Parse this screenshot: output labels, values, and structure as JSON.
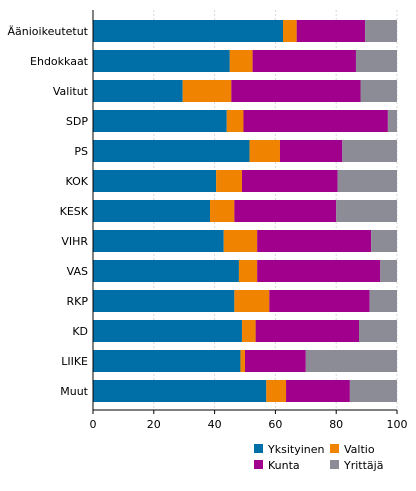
{
  "chart_data": {
    "type": "bar",
    "orientation": "horizontal",
    "stacked": true,
    "percent": true,
    "categories": [
      "Äänioikeutetut",
      "Ehdokkaat",
      "Valitut",
      "SDP",
      "PS",
      "KOK",
      "KESK",
      "VIHR",
      "VAS",
      "RKP",
      "KD",
      "LIIKE",
      "Muut"
    ],
    "series": [
      {
        "name": "Yksityinen",
        "color": "#006fa8",
        "values": [
          62.5,
          45,
          29.5,
          44,
          51.5,
          40.5,
          38.5,
          43,
          48,
          46.5,
          49,
          48.5,
          57
        ]
      },
      {
        "name": "Valtio",
        "color": "#f08400",
        "values": [
          4.5,
          7.5,
          16,
          5.5,
          10,
          8.5,
          8,
          11,
          6,
          11.5,
          4.5,
          1.5,
          6.5
        ]
      },
      {
        "name": "Kunta",
        "color": "#a0008c",
        "values": [
          22.5,
          34,
          42.5,
          47.5,
          20.5,
          31.5,
          33.5,
          37.5,
          40.5,
          33,
          34,
          20,
          21
        ]
      },
      {
        "name": "Yrittäjä",
        "color": "#8c8c97",
        "values": [
          10.5,
          13.5,
          12,
          3,
          18,
          19.5,
          20,
          8.5,
          5.5,
          9,
          12.5,
          30,
          15.5
        ]
      }
    ],
    "xlim": [
      0,
      100
    ],
    "xticks": [
      0,
      20,
      40,
      60,
      80,
      100
    ],
    "title": "",
    "xlabel": "",
    "ylabel": "",
    "grid": "vertical",
    "legend_position": "bottom-right"
  }
}
